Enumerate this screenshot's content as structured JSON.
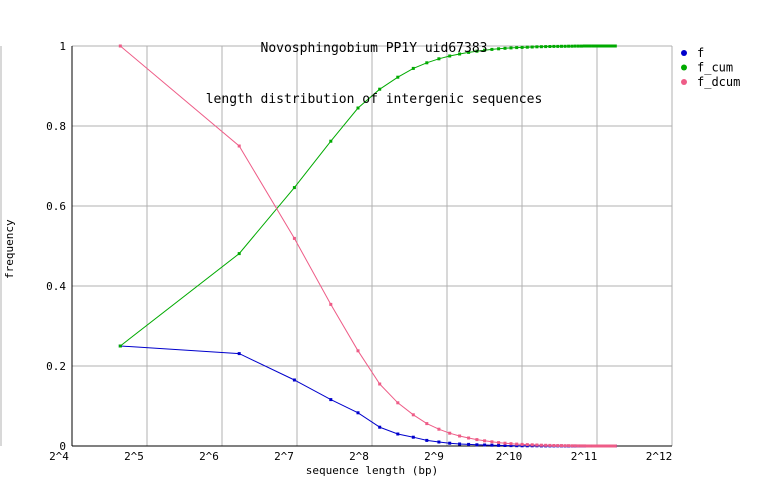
{
  "chart_data": {
    "type": "line",
    "title": "Novosphingobium PP1Y uid67383",
    "subtitle": "length distribution of intergenic sequences",
    "xlabel": "sequence length (bp)",
    "ylabel": "frequency",
    "x_scale": "log2",
    "xlim_log2": [
      4,
      12
    ],
    "ylim": [
      0,
      1
    ],
    "grid": true,
    "legend_position": "top-right-outside",
    "x_ticks": [
      "2^4",
      "2^5",
      "2^6",
      "2^7",
      "2^8",
      "2^9",
      "2^10",
      "2^11",
      "2^12"
    ],
    "x_tick_values": [
      16,
      32,
      64,
      128,
      256,
      512,
      1024,
      2048,
      4096
    ],
    "y_tick_labels": [
      "0",
      "0.2",
      "0.4",
      "0.6",
      "0.8",
      "1"
    ],
    "y_tick_values": [
      0,
      0.2,
      0.4,
      0.6,
      0.8,
      1
    ],
    "x_bp": [
      25,
      75,
      125,
      175,
      225,
      275,
      325,
      375,
      425,
      475,
      525,
      575,
      625,
      675,
      725,
      775,
      825,
      875,
      925,
      975,
      1025,
      1075,
      1125,
      1175,
      1225,
      1275,
      1325,
      1375,
      1425,
      1475,
      1525,
      1575,
      1625,
      1675,
      1725,
      1775,
      1825,
      1875,
      1925,
      1975,
      2025,
      2075,
      2125,
      2175,
      2225,
      2275,
      2325,
      2375,
      2425
    ],
    "series": [
      {
        "name": "f",
        "color": "#0000cc",
        "values": [
          0.25,
          0.231,
          0.165,
          0.116,
          0.083,
          0.047,
          0.03,
          0.022,
          0.014,
          0.01,
          0.007,
          0.005,
          0.004,
          0.003,
          0.0025,
          0.002,
          0.0015,
          0.0012,
          0.001,
          0.0008,
          0.0006,
          0.0005,
          0.0004,
          0.0004,
          0.0003,
          0.0003,
          0.0002,
          0.0002,
          0.0002,
          0.00015,
          0.00012,
          0.0001,
          0.0001,
          0.0001,
          8e-05,
          7e-05,
          6e-05,
          5e-05,
          4e-05,
          3e-05,
          0,
          0,
          0,
          0,
          0,
          0,
          0,
          0,
          0
        ]
      },
      {
        "name": "f_cum",
        "color": "#00aa00",
        "values": [
          0.25,
          0.481,
          0.646,
          0.762,
          0.845,
          0.892,
          0.922,
          0.944,
          0.958,
          0.968,
          0.975,
          0.98,
          0.984,
          0.987,
          0.9895,
          0.9915,
          0.993,
          0.9942,
          0.9952,
          0.996,
          0.9966,
          0.9971,
          0.9975,
          0.9979,
          0.9982,
          0.9985,
          0.9987,
          0.9989,
          0.9991,
          0.99925,
          0.99937,
          0.99947,
          0.99957,
          0.99967,
          0.99975,
          0.99982,
          0.99988,
          0.99993,
          0.99997,
          1,
          1,
          1,
          1,
          1,
          1,
          1,
          1,
          1,
          1
        ]
      },
      {
        "name": "f_dcum",
        "color": "#ee5c87",
        "values": [
          1,
          0.75,
          0.519,
          0.354,
          0.238,
          0.155,
          0.108,
          0.078,
          0.056,
          0.042,
          0.032,
          0.025,
          0.02,
          0.016,
          0.013,
          0.0105,
          0.0085,
          0.007,
          0.0058,
          0.0048,
          0.004,
          0.0034,
          0.0029,
          0.0025,
          0.0021,
          0.0018,
          0.0015,
          0.0013,
          0.0011,
          0.0009,
          0.00075,
          0.00063,
          0.00053,
          0.00043,
          0.00033,
          0.00025,
          0.00018,
          0.00012,
          7e-05,
          3e-05,
          0,
          0,
          0,
          0,
          0,
          0,
          0,
          0,
          0
        ]
      }
    ]
  },
  "colors": {
    "grid": "#b0b0b0",
    "axis": "#000000",
    "background": "#ffffff",
    "edge_line": "#b0b0b0"
  }
}
